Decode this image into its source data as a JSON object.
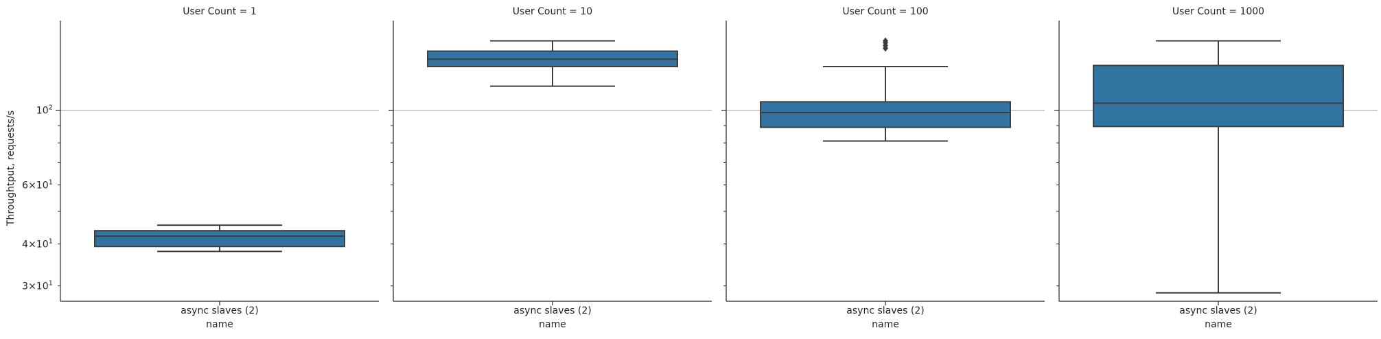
{
  "chart_data": {
    "type": "box",
    "ylabel": "Throughtput, requests/s",
    "xlabel": "name",
    "y_scale": "log",
    "ylim": [
      27,
      185
    ],
    "y_major_ticks": [
      {
        "value": 100,
        "label": "10",
        "exp": "2"
      }
    ],
    "y_minor_ticks": [
      {
        "value": 30,
        "mant": "3",
        "base": "10",
        "exp": "1"
      },
      {
        "value": 40,
        "mant": "4",
        "base": "10",
        "exp": "1"
      },
      {
        "value": 60,
        "mant": "6",
        "base": "10",
        "exp": "1"
      }
    ],
    "y_minor_unlabeled": [
      50,
      70,
      80,
      90
    ],
    "reference_line": 100,
    "box_color": "#3274a1",
    "panels": [
      {
        "title": "User Count = 1",
        "category": "async slaves (2)",
        "whisker_low": 38.0,
        "q1": 39.3,
        "median": 42.2,
        "q3": 43.8,
        "whisker_high": 45.5,
        "outliers": []
      },
      {
        "title": "User Count = 10",
        "category": "async slaves (2)",
        "whisker_low": 118,
        "q1": 135,
        "median": 142,
        "q3": 150,
        "whisker_high": 161,
        "outliers": []
      },
      {
        "title": "User Count = 100",
        "category": "async slaves (2)",
        "whisker_low": 81,
        "q1": 89,
        "median": 98.5,
        "q3": 106,
        "whisker_high": 135,
        "outliers": [
          153,
          156,
          159,
          161
        ]
      },
      {
        "title": "User Count = 1000",
        "category": "async slaves (2)",
        "whisker_low": 28.6,
        "q1": 89.5,
        "median": 105,
        "q3": 136,
        "whisker_high": 161,
        "outliers": []
      }
    ]
  }
}
